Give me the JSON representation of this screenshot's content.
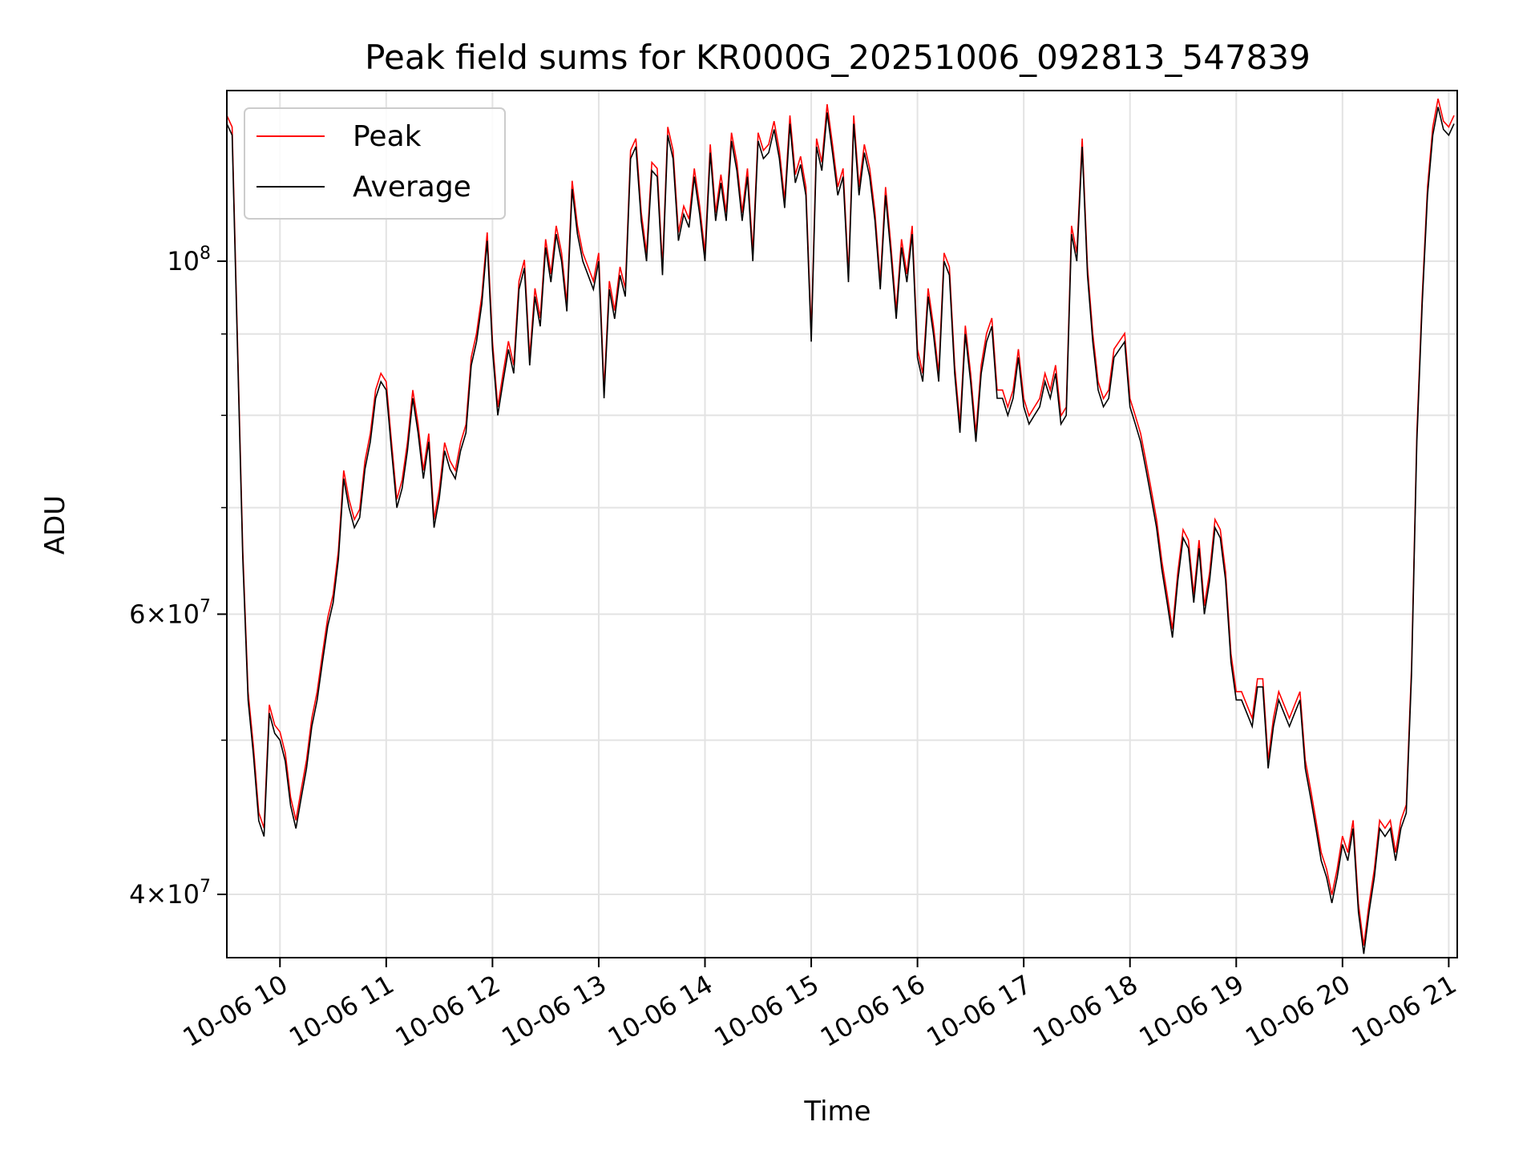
{
  "chart_data": {
    "type": "line",
    "title": "Peak field sums for KR000G_20251006_092813_547839",
    "xlabel": "Time",
    "ylabel": "ADU",
    "yscale": "log",
    "ylim": [
      36500000,
      128000000
    ],
    "xlim": [
      9.5,
      21.08
    ],
    "grid": true,
    "legend_position": "top-left",
    "x_ticks": [
      {
        "value": 10,
        "label": "10-06 10"
      },
      {
        "value": 11,
        "label": "10-06 11"
      },
      {
        "value": 12,
        "label": "10-06 12"
      },
      {
        "value": 13,
        "label": "10-06 13"
      },
      {
        "value": 14,
        "label": "10-06 14"
      },
      {
        "value": 15,
        "label": "10-06 15"
      },
      {
        "value": 16,
        "label": "10-06 16"
      },
      {
        "value": 17,
        "label": "10-06 17"
      },
      {
        "value": 18,
        "label": "10-06 18"
      },
      {
        "value": 19,
        "label": "10-06 19"
      },
      {
        "value": 20,
        "label": "10-06 20"
      },
      {
        "value": 21,
        "label": "10-06 21"
      }
    ],
    "y_major_ticks": [
      {
        "value": 40000000,
        "mantissa": "4",
        "exponent": "7"
      },
      {
        "value": 60000000,
        "mantissa": "6",
        "exponent": "7"
      },
      {
        "value": 100000000,
        "mantissa": "",
        "exponent": "8"
      }
    ],
    "y_minor_ticks": [
      50000000,
      70000000,
      80000000,
      90000000
    ],
    "series": [
      {
        "name": "Peak",
        "color": "#ff0000"
      },
      {
        "name": "Average",
        "color": "#000000"
      }
    ],
    "x": [
      9.5,
      9.55,
      9.6,
      9.65,
      9.7,
      9.75,
      9.8,
      9.85,
      9.9,
      9.95,
      10.0,
      10.05,
      10.1,
      10.15,
      10.2,
      10.25,
      10.3,
      10.35,
      10.4,
      10.45,
      10.5,
      10.55,
      10.6,
      10.65,
      10.7,
      10.75,
      10.8,
      10.85,
      10.9,
      10.95,
      11.0,
      11.05,
      11.1,
      11.15,
      11.2,
      11.25,
      11.3,
      11.35,
      11.4,
      11.45,
      11.5,
      11.55,
      11.6,
      11.65,
      11.7,
      11.75,
      11.8,
      11.85,
      11.9,
      11.95,
      12.0,
      12.05,
      12.1,
      12.15,
      12.2,
      12.25,
      12.3,
      12.35,
      12.4,
      12.45,
      12.5,
      12.55,
      12.6,
      12.65,
      12.7,
      12.75,
      12.8,
      12.85,
      12.9,
      12.95,
      13.0,
      13.05,
      13.1,
      13.15,
      13.2,
      13.25,
      13.3,
      13.35,
      13.4,
      13.45,
      13.5,
      13.55,
      13.6,
      13.65,
      13.7,
      13.75,
      13.8,
      13.85,
      13.9,
      13.95,
      14.0,
      14.05,
      14.1,
      14.15,
      14.2,
      14.25,
      14.3,
      14.35,
      14.4,
      14.45,
      14.5,
      14.55,
      14.6,
      14.65,
      14.7,
      14.75,
      14.8,
      14.85,
      14.9,
      14.95,
      15.0,
      15.05,
      15.1,
      15.15,
      15.2,
      15.25,
      15.3,
      15.35,
      15.4,
      15.45,
      15.5,
      15.55,
      15.6,
      15.65,
      15.7,
      15.75,
      15.8,
      15.85,
      15.9,
      15.95,
      16.0,
      16.05,
      16.1,
      16.15,
      16.2,
      16.25,
      16.3,
      16.35,
      16.4,
      16.45,
      16.5,
      16.55,
      16.6,
      16.65,
      16.7,
      16.75,
      16.8,
      16.85,
      16.9,
      16.95,
      17.0,
      17.05,
      17.1,
      17.15,
      17.2,
      17.25,
      17.3,
      17.35,
      17.4,
      17.45,
      17.5,
      17.55,
      17.6,
      17.65,
      17.7,
      17.75,
      17.8,
      17.85,
      17.9,
      17.95,
      18.0,
      18.05,
      18.1,
      18.15,
      18.2,
      18.25,
      18.3,
      18.35,
      18.4,
      18.45,
      18.5,
      18.55,
      18.6,
      18.65,
      18.7,
      18.75,
      18.8,
      18.85,
      18.9,
      18.95,
      19.0,
      19.05,
      19.1,
      19.15,
      19.2,
      19.25,
      19.3,
      19.35,
      19.4,
      19.45,
      19.5,
      19.55,
      19.6,
      19.65,
      19.7,
      19.75,
      19.8,
      19.85,
      19.9,
      19.95,
      20.0,
      20.05,
      20.1,
      20.15,
      20.2,
      20.25,
      20.3,
      20.35,
      20.4,
      20.45,
      20.5,
      20.55,
      20.6,
      20.65,
      20.7,
      20.75,
      20.8,
      20.85,
      20.9,
      20.95,
      21.0,
      21.05
    ],
    "average": [
      122000000,
      120000000,
      88000000,
      65000000,
      53000000,
      49000000,
      44500000,
      43500000,
      52000000,
      50500000,
      50000000,
      48500000,
      45500000,
      44000000,
      46000000,
      48000000,
      51000000,
      53000000,
      56000000,
      59000000,
      61000000,
      65000000,
      73000000,
      70000000,
      68000000,
      69000000,
      74000000,
      77000000,
      82000000,
      84000000,
      83000000,
      76000000,
      70000000,
      72000000,
      76000000,
      82000000,
      78000000,
      73000000,
      77000000,
      68000000,
      71000000,
      76000000,
      74000000,
      73000000,
      76000000,
      78000000,
      86000000,
      89000000,
      94000000,
      103000000,
      88000000,
      80000000,
      84000000,
      88000000,
      85000000,
      96000000,
      99000000,
      86000000,
      95000000,
      91000000,
      102000000,
      97000000,
      104000000,
      100000000,
      93000000,
      111000000,
      104000000,
      100000000,
      98000000,
      96000000,
      100000000,
      82000000,
      96000000,
      92000000,
      98000000,
      95000000,
      116000000,
      118000000,
      106000000,
      100000000,
      114000000,
      113000000,
      98000000,
      120000000,
      116000000,
      103000000,
      107000000,
      105000000,
      113000000,
      107000000,
      100000000,
      117000000,
      106000000,
      112000000,
      106000000,
      119000000,
      114000000,
      106000000,
      113000000,
      100000000,
      119000000,
      116000000,
      117000000,
      121000000,
      116000000,
      108000000,
      122000000,
      112000000,
      115000000,
      110000000,
      89000000,
      118000000,
      114000000,
      124000000,
      117000000,
      110000000,
      113000000,
      97000000,
      122000000,
      110000000,
      117000000,
      113000000,
      106000000,
      96000000,
      110000000,
      101000000,
      92000000,
      102000000,
      97000000,
      104000000,
      87000000,
      84000000,
      95000000,
      90000000,
      84000000,
      100000000,
      98000000,
      85000000,
      78000000,
      90000000,
      84000000,
      77000000,
      85000000,
      89000000,
      91000000,
      82000000,
      82000000,
      80000000,
      82000000,
      87000000,
      81000000,
      79000000,
      80000000,
      81000000,
      84000000,
      82000000,
      85000000,
      79000000,
      80000000,
      104000000,
      100000000,
      118000000,
      98000000,
      89000000,
      83000000,
      81000000,
      82000000,
      87000000,
      88000000,
      89000000,
      81000000,
      79000000,
      77000000,
      74000000,
      71000000,
      68000000,
      64000000,
      61000000,
      58000000,
      63000000,
      67000000,
      66000000,
      61000000,
      66000000,
      60000000,
      63000000,
      68000000,
      67000000,
      63000000,
      56000000,
      53000000,
      53000000,
      52000000,
      51000000,
      54000000,
      54000000,
      48000000,
      51000000,
      53000000,
      52000000,
      51000000,
      52000000,
      53000000,
      48000000,
      46000000,
      44000000,
      42000000,
      41000000,
      39500000,
      41000000,
      43000000,
      42000000,
      44000000,
      39000000,
      36700000,
      39000000,
      41000000,
      44000000,
      43500000,
      44000000,
      42000000,
      44000000,
      45000000,
      55000000,
      77000000,
      94000000,
      110000000,
      120000000,
      125000000,
      121000000,
      120000000,
      122000000
    ]
  }
}
